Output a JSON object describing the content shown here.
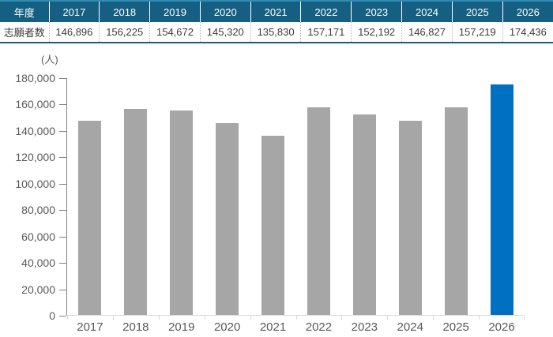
{
  "colors": {
    "header_bg": "#156082",
    "header_text": "#ffffff",
    "table_top_border": "#2e8cb5",
    "table_bottom_border": "#156082",
    "header_divider": "rgba(255,255,255,0.45)",
    "divider": "#b3b3b3",
    "cell_text": "#3b3b3b",
    "axis_text": "#595959",
    "y_axis_line": "#808080",
    "x_axis_line": "#d9d9d9",
    "bar_default": "#a6a6a6",
    "bar_highlight": "#0070c0"
  },
  "table": {
    "header_label": "年度",
    "row_label": "志願者数",
    "years": [
      "2017",
      "2018",
      "2019",
      "2020",
      "2021",
      "2022",
      "2023",
      "2024",
      "2025",
      "2026"
    ],
    "values": [
      "146,896",
      "156,225",
      "154,672",
      "145,320",
      "135,830",
      "157,171",
      "152,192",
      "146,827",
      "157,219",
      "174,436"
    ]
  },
  "chart_data": {
    "type": "bar",
    "title": "",
    "unit_label": "(人)",
    "categories": [
      "2017",
      "2018",
      "2019",
      "2020",
      "2021",
      "2022",
      "2023",
      "2024",
      "2025",
      "2026"
    ],
    "values": [
      146896,
      156225,
      154672,
      145320,
      135830,
      157171,
      152192,
      146827,
      157219,
      174436
    ],
    "ylabel": "(人)",
    "ylim": [
      0,
      180000
    ],
    "ytick_step": 20000,
    "highlight_index": 9,
    "bar_color_default": "#a6a6a6",
    "bar_color_highlight": "#0070c0",
    "grid": false,
    "legend": false
  }
}
